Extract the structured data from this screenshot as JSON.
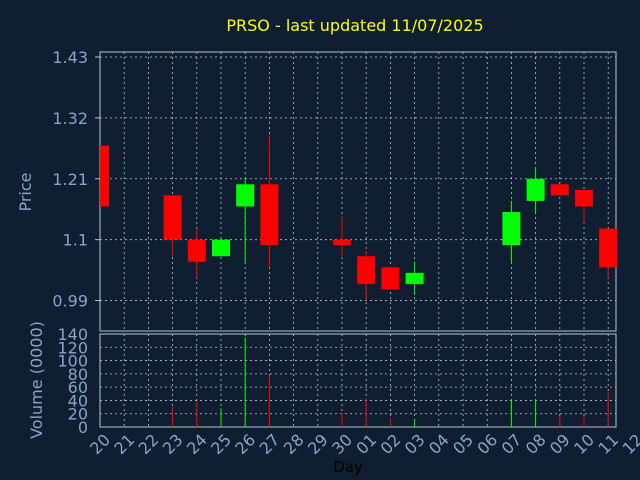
{
  "chart_data": {
    "type": "candlestick",
    "title": "PRSO - last updated 11/07/2025",
    "xlabel": "Day",
    "price_panel": {
      "ylabel": "Price",
      "ylim": [
        0.935,
        1.43
      ],
      "yticks": [
        "1.43",
        "1.32",
        "1.21",
        "1.1",
        "0.99"
      ],
      "ytick_values": [
        1.43,
        1.32,
        1.21,
        1.1,
        0.99
      ],
      "grid": true
    },
    "volume_panel": {
      "ylabel": "Volume (0000)",
      "ylim": [
        0,
        140
      ],
      "yticks": [
        "140",
        "120",
        "100",
        "80",
        "60",
        "40",
        "20",
        "0"
      ],
      "ytick_values": [
        140,
        120,
        100,
        80,
        60,
        40,
        20,
        0
      ],
      "grid": true
    },
    "x_ticks": [
      "20",
      "21",
      "22",
      "23",
      "24",
      "25",
      "26",
      "27",
      "28",
      "29",
      "30",
      "01",
      "02",
      "03",
      "04",
      "05",
      "06",
      "07",
      "08",
      "09",
      "10",
      "11",
      "12"
    ],
    "colors": {
      "up": "#00ff00",
      "down": "#ff0000",
      "title": "#ffff00",
      "axis": "#8aa4c8"
    },
    "candles": [
      {
        "x": 0,
        "open": 1.27,
        "close": 1.16,
        "high": 1.27,
        "low": 1.16,
        "volume": 0
      },
      {
        "x": 3,
        "open": 1.18,
        "close": 1.1,
        "high": 1.18,
        "low": 1.07,
        "volume": 30
      },
      {
        "x": 4,
        "open": 1.1,
        "close": 1.06,
        "high": 1.12,
        "low": 1.03,
        "volume": 38
      },
      {
        "x": 5,
        "open": 1.07,
        "close": 1.1,
        "high": 1.1,
        "low": 1.07,
        "volume": 28
      },
      {
        "x": 6,
        "open": 1.16,
        "close": 1.2,
        "high": 1.21,
        "low": 1.06,
        "volume": 135
      },
      {
        "x": 7,
        "open": 1.2,
        "close": 1.09,
        "high": 1.29,
        "low": 1.05,
        "volume": 78
      },
      {
        "x": 10,
        "open": 1.1,
        "close": 1.09,
        "high": 1.14,
        "low": 1.07,
        "volume": 20
      },
      {
        "x": 11,
        "open": 1.07,
        "close": 1.02,
        "high": 1.08,
        "low": 0.99,
        "volume": 42
      },
      {
        "x": 12,
        "open": 1.05,
        "close": 1.01,
        "high": 1.05,
        "low": 1.01,
        "volume": 14
      },
      {
        "x": 13,
        "open": 1.02,
        "close": 1.04,
        "high": 1.06,
        "low": 1.0,
        "volume": 12
      },
      {
        "x": 17,
        "open": 1.09,
        "close": 1.15,
        "high": 1.17,
        "low": 1.06,
        "volume": 40
      },
      {
        "x": 18,
        "open": 1.17,
        "close": 1.21,
        "high": 1.23,
        "low": 1.15,
        "volume": 42
      },
      {
        "x": 19,
        "open": 1.2,
        "close": 1.18,
        "high": 1.2,
        "low": 1.18,
        "volume": 16
      },
      {
        "x": 20,
        "open": 1.19,
        "close": 1.16,
        "high": 1.19,
        "low": 1.13,
        "volume": 16
      },
      {
        "x": 21,
        "open": 1.12,
        "close": 1.05,
        "high": 1.12,
        "low": 1.03,
        "volume": 52
      }
    ]
  }
}
